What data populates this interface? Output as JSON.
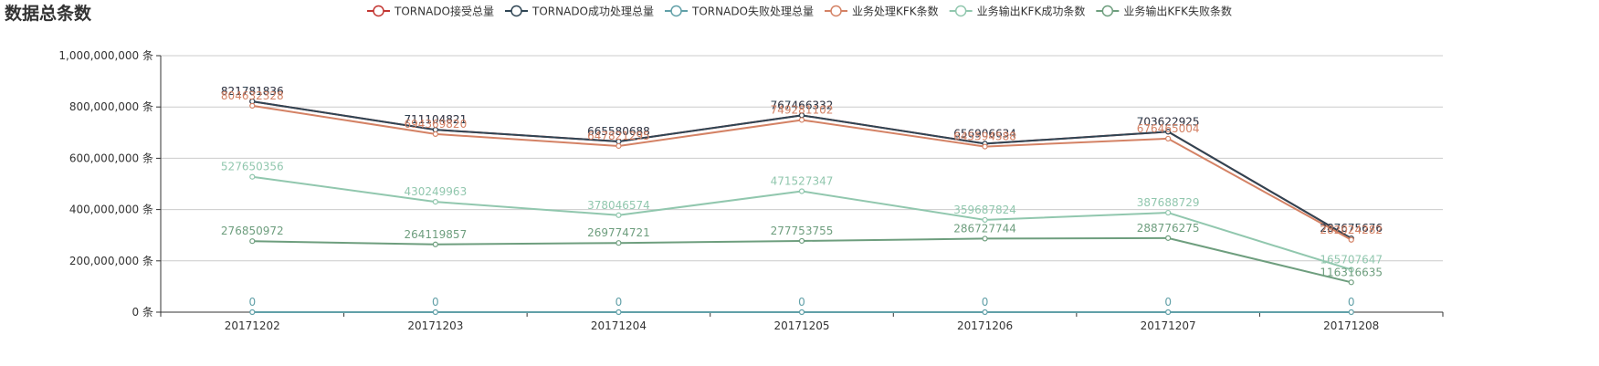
{
  "chart_data": {
    "type": "line",
    "title": "数据总条数",
    "y_unit_suffix": " 条",
    "ylim": [
      0,
      1000000000
    ],
    "y_ticks": [
      0,
      200000000,
      400000000,
      600000000,
      800000000,
      1000000000
    ],
    "y_tick_labels": [
      "0 条",
      "200,000,000 条",
      "400,000,000 条",
      "600,000,000 条",
      "800,000,000 条",
      "1,000,000,000 条"
    ],
    "grid": true,
    "legend_position": "top-center",
    "categories": [
      "20171202",
      "20171203",
      "20171204",
      "20171205",
      "20171206",
      "20171207",
      "20171208"
    ],
    "series": [
      {
        "name": "TORNADO接受总量",
        "color": "#c23531",
        "values": [
          821781836,
          711104821,
          665580688,
          767466332,
          656906634,
          703622925,
          287675676
        ]
      },
      {
        "name": "TORNADO成功处理总量",
        "color": "#2f4554",
        "values": [
          821781836,
          711104821,
          665580688,
          767466332,
          656906634,
          703622925,
          287675676
        ]
      },
      {
        "name": "TORNADO失败处理总量",
        "color": "#61a0a8",
        "values": [
          0,
          0,
          0,
          0,
          0,
          0,
          0
        ]
      },
      {
        "name": "业务处理KFK条数",
        "color": "#d48265",
        "values": [
          804632328,
          694369820,
          647821295,
          749281102,
          645594588,
          676465004,
          282024282
        ]
      },
      {
        "name": "业务输出KFK成功条数",
        "color": "#91c7ae",
        "values": [
          527650356,
          430249963,
          378046574,
          471527347,
          359687824,
          387688729,
          165707647
        ]
      },
      {
        "name": "业务输出KFK失败条数",
        "color": "#6e9e7e",
        "values": [
          276850972,
          264119857,
          269774721,
          277753755,
          286727744,
          288776275,
          116316635
        ]
      }
    ]
  }
}
